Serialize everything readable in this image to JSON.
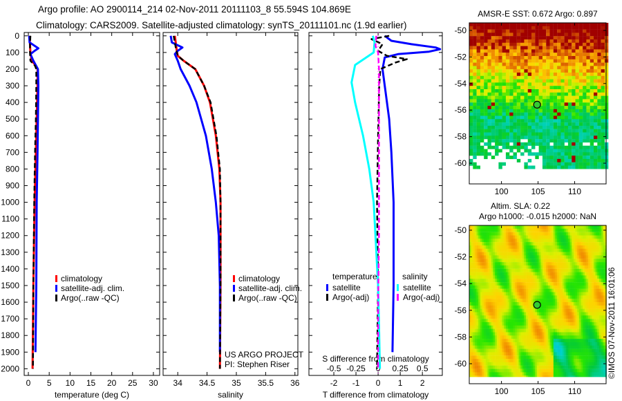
{
  "title_line1": "Argo profile: AO 2900114_214 02-Nov-2011 20111103_8 55.594S 104.869E",
  "title_line2": "Climatology: CARS2009. Satellite-adjusted climatology: synTS_20111101.nc (1.9d earlier)",
  "credit": "©IMOS 07-Nov-2011 16:01:06",
  "project_line1": "US ARGO PROJECT",
  "project_line2": "PI: Stephen Riser",
  "colors": {
    "climatology": "#ff0000",
    "satellite": "#0000ff",
    "argo": "#000000",
    "sal_satellite": "#00ffff",
    "sal_argo": "#ff00ff"
  },
  "chart_data": [
    {
      "type": "line",
      "xlabel": "temperature (deg C)",
      "ylabel": "",
      "xlim": [
        -1,
        31.5
      ],
      "ylim": [
        2040,
        -20
      ],
      "xticks": [
        0,
        5,
        10,
        15,
        20,
        25,
        30
      ],
      "yticks": [
        0,
        100,
        200,
        300,
        400,
        500,
        600,
        700,
        800,
        900,
        1000,
        1100,
        1200,
        1300,
        1400,
        1500,
        1600,
        1700,
        1800,
        1900,
        2000
      ],
      "legend": [
        "climatology",
        "satellite-adj. clim.",
        "Argo(..raw -QC)"
      ],
      "series": [
        {
          "name": "climatology",
          "color": "#ff0000",
          "depth": [
            0,
            50,
            100,
            150,
            180,
            200,
            300,
            500,
            700,
            1000,
            1500,
            2000
          ],
          "values": [
            0.3,
            0.4,
            0.5,
            0.8,
            1.8,
            2.2,
            2.2,
            2.0,
            1.8,
            1.5,
            1.2,
            1.0
          ]
        },
        {
          "name": "satellite-adj. clim.",
          "color": "#0000ff",
          "depth": [
            0,
            40,
            60,
            75,
            90,
            110,
            150,
            200,
            300,
            500,
            700,
            1000,
            1500,
            1900
          ],
          "values": [
            0.2,
            0.3,
            1.5,
            2.4,
            1.5,
            0.5,
            1.2,
            2.3,
            2.4,
            2.3,
            2.2,
            2.0,
            1.9,
            1.7
          ]
        },
        {
          "name": "Argo(..raw -QC)",
          "color": "#000000",
          "dashed": true,
          "depth": [
            0,
            50,
            100,
            150,
            180,
            200,
            300,
            500,
            700,
            1000,
            1500,
            2000
          ],
          "values": [
            0.5,
            0.4,
            0.4,
            0.5,
            1.6,
            1.9,
            1.9,
            1.8,
            1.6,
            1.4,
            1.2,
            1.1
          ]
        }
      ]
    },
    {
      "type": "line",
      "xlabel": "salinity",
      "xlim": [
        33.75,
        36.05
      ],
      "ylim": [
        2040,
        -20
      ],
      "xticks": [
        34,
        34.5,
        35,
        35.5,
        36
      ],
      "yticks": [
        0,
        100,
        200,
        300,
        400,
        500,
        600,
        700,
        800,
        900,
        1000,
        1100,
        1200,
        1300,
        1400,
        1500,
        1600,
        1700,
        1800,
        1900,
        2000
      ],
      "legend": [
        "climatology",
        "satellite-adj. clim.",
        "Argo(..raw -QC)"
      ],
      "series": [
        {
          "name": "climatology",
          "color": "#ff0000",
          "depth": [
            0,
            80,
            120,
            150,
            200,
            300,
            400,
            600,
            800,
            1000,
            1500,
            2000
          ],
          "values": [
            33.95,
            33.98,
            34.0,
            34.1,
            34.3,
            34.45,
            34.55,
            34.65,
            34.71,
            34.73,
            34.73,
            34.72
          ]
        },
        {
          "name": "satellite-adj. clim.",
          "color": "#0000ff",
          "depth": [
            0,
            40,
            70,
            90,
            110,
            150,
            200,
            300,
            400,
            500,
            600,
            800,
            1000,
            1200,
            1500,
            1900
          ],
          "values": [
            33.88,
            33.9,
            34.08,
            34.0,
            33.95,
            34.0,
            34.05,
            34.2,
            34.32,
            34.4,
            34.48,
            34.58,
            34.65,
            34.7,
            34.72,
            34.72
          ]
        },
        {
          "name": "Argo(..raw -QC)",
          "color": "#000000",
          "dashed": true,
          "depth": [
            0,
            80,
            120,
            150,
            200,
            300,
            400,
            600,
            800,
            1000,
            1500,
            2000
          ],
          "values": [
            33.93,
            33.97,
            34.0,
            34.1,
            34.3,
            34.45,
            34.56,
            34.66,
            34.72,
            34.73,
            34.73,
            34.72
          ]
        }
      ]
    },
    {
      "type": "line",
      "xlabel": "T difference from climatology",
      "x2label": "S difference from climatology",
      "xlim": [
        -3.125,
        2.9
      ],
      "ylim": [
        2040,
        -20
      ],
      "xticks": [
        -2,
        -1,
        0,
        1,
        2
      ],
      "x2ticks": [
        -0.5,
        -0.25,
        0,
        0.25,
        0.5
      ],
      "x2_scale": 4,
      "yticks": [
        0,
        100,
        200,
        300,
        400,
        500,
        600,
        700,
        800,
        900,
        1000,
        1100,
        1200,
        1300,
        1400,
        1500,
        1600,
        1700,
        1800,
        1900,
        2000
      ],
      "legend_temperature": {
        "title": "temperature",
        "items": [
          "satellite",
          "Argo(-adj)"
        ]
      },
      "legend_salinity": {
        "title": "salinity",
        "items": [
          "satellite",
          "Argo(-adj)"
        ]
      },
      "series": [
        {
          "name": "T satellite",
          "color": "#0000ff",
          "axis": "T",
          "depth": [
            0,
            30,
            50,
            70,
            80,
            95,
            110,
            130,
            200,
            300,
            500,
            700,
            1000,
            1500,
            1900
          ],
          "values": [
            0.3,
            0.6,
            1.5,
            2.6,
            2.8,
            2.3,
            0.9,
            0.3,
            0.2,
            0.3,
            0.5,
            0.6,
            0.7,
            0.7,
            0.65
          ]
        },
        {
          "name": "T Argo(-adj)",
          "color": "#000000",
          "axis": "T",
          "dashed": true,
          "depth": [
            0,
            20,
            50,
            90,
            120,
            140,
            160,
            200,
            300,
            600,
            1000,
            1500,
            2000
          ],
          "values": [
            0.5,
            -0.3,
            0.2,
            0.0,
            0.4,
            1.3,
            0.8,
            0.1,
            0.05,
            0.0,
            -0.05,
            0.0,
            -0.05
          ]
        },
        {
          "name": "S satellite",
          "color": "#00ffff",
          "axis": "S",
          "depth": [
            0,
            40,
            100,
            175,
            280,
            400,
            600,
            800,
            1000,
            1500,
            2000
          ],
          "values": [
            -0.06,
            -0.04,
            -0.05,
            -0.26,
            -0.3,
            -0.26,
            -0.17,
            -0.1,
            -0.05,
            0.0,
            0.02
          ]
        },
        {
          "name": "S Argo(-adj)",
          "color": "#ff00ff",
          "axis": "S",
          "dashed": true,
          "depth": [
            0,
            60,
            100,
            200,
            400,
            800,
            1200,
            1600,
            2000
          ],
          "values": [
            -0.02,
            -0.03,
            0.0,
            0.01,
            0.01,
            0.01,
            0.01,
            0.0,
            0.0
          ]
        }
      ]
    },
    {
      "type": "heatmap",
      "title": "AMSR-E SST: 0.672 Argo: 0.897",
      "xlim": [
        95.6,
        114.3
      ],
      "ylim": [
        -49.43,
        -61.56
      ],
      "xticks": [
        100,
        105,
        110
      ],
      "yticks": [
        -50,
        -52,
        -54,
        -56,
        -58,
        -60
      ],
      "argo_position": {
        "lon": 104.869,
        "lat": -55.594
      }
    },
    {
      "type": "heatmap",
      "title_line1": "Altim. SLA: 0.22",
      "title_line2": "Argo h1000: -0.015 h2000: NaN",
      "xlim": [
        95.6,
        114.3
      ],
      "ylim": [
        -49.64,
        -61.5
      ],
      "xticks": [
        100,
        105,
        110
      ],
      "yticks": [
        -50,
        -52,
        -54,
        -56,
        -58,
        -60
      ],
      "argo_position": {
        "lon": 104.869,
        "lat": -55.594
      }
    }
  ]
}
